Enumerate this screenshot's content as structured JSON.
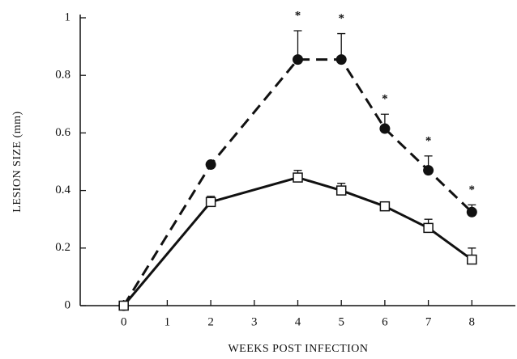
{
  "chart_data": {
    "type": "line",
    "xlabel": "WEEKS POST INFECTION",
    "ylabel": "LESION SIZE (mm)",
    "xlim": [
      -1,
      9
    ],
    "xticks": [
      0,
      1,
      2,
      3,
      4,
      5,
      6,
      7,
      8
    ],
    "ylim": [
      0,
      1
    ],
    "yticks": [
      0,
      0.2,
      0.4,
      0.6,
      0.8,
      1
    ],
    "series": [
      {
        "color": "#111111",
        "line_style": "dashed",
        "marker": "circle",
        "x": [
          0,
          2,
          4,
          5,
          6,
          7,
          8
        ],
        "values": [
          0,
          0.49,
          0.855,
          0.855,
          0.615,
          0.47,
          0.325
        ],
        "errors": [
          null,
          null,
          0.1,
          0.09,
          0.05,
          0.05,
          0.025
        ]
      },
      {
        "color": "#111111",
        "line_style": "solid",
        "marker": "square",
        "x": [
          0,
          2,
          4,
          5,
          6,
          7,
          8
        ],
        "values": [
          0,
          0.36,
          0.445,
          0.4,
          0.345,
          0.27,
          0.16
        ],
        "errors": [
          null,
          0.02,
          0.025,
          0.025,
          0.01,
          0.03,
          0.04
        ]
      }
    ],
    "annotations": [
      {
        "x": 4,
        "text": "*"
      },
      {
        "x": 5,
        "text": "*"
      },
      {
        "x": 6,
        "text": "*"
      },
      {
        "x": 7,
        "text": "*"
      },
      {
        "x": 8,
        "text": "*"
      }
    ]
  }
}
